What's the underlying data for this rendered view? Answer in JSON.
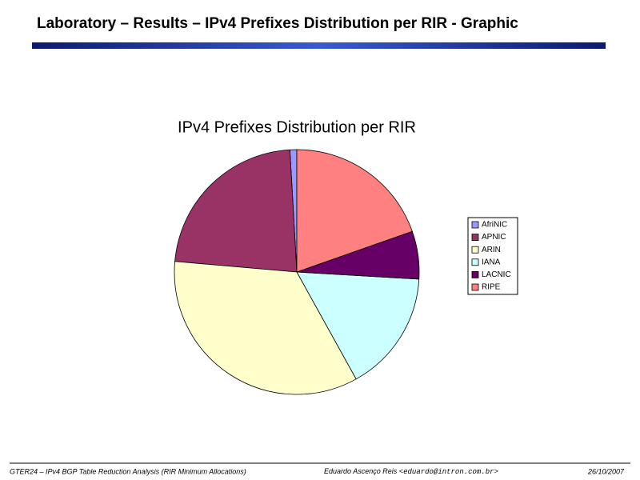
{
  "slide": {
    "title": "Laboratory – Results – IPv4 Prefixes Distribution per RIR - Graphic",
    "footer_left": "GTER24 – IPv4 BGP Table Reduction Analysis (RIR Minimum Allocations)",
    "footer_author": "Eduardo Ascenço Reis ",
    "footer_email": "<eduardo@intron.com.br>",
    "footer_date": "26/10/2007"
  },
  "chart_data": {
    "type": "pie",
    "title": "IPv4 Prefixes Distribution per RIR",
    "categories": [
      "AfriNIC",
      "APNIC",
      "ARIN",
      "IANA",
      "LACNIC",
      "RIPE"
    ],
    "values": [
      0.9,
      22.7,
      34.4,
      16.0,
      6.3,
      19.6
    ],
    "colors": [
      "#9999ff",
      "#993366",
      "#ffffcc",
      "#ccffff",
      "#660066",
      "#ff8080"
    ],
    "legend": "right"
  }
}
